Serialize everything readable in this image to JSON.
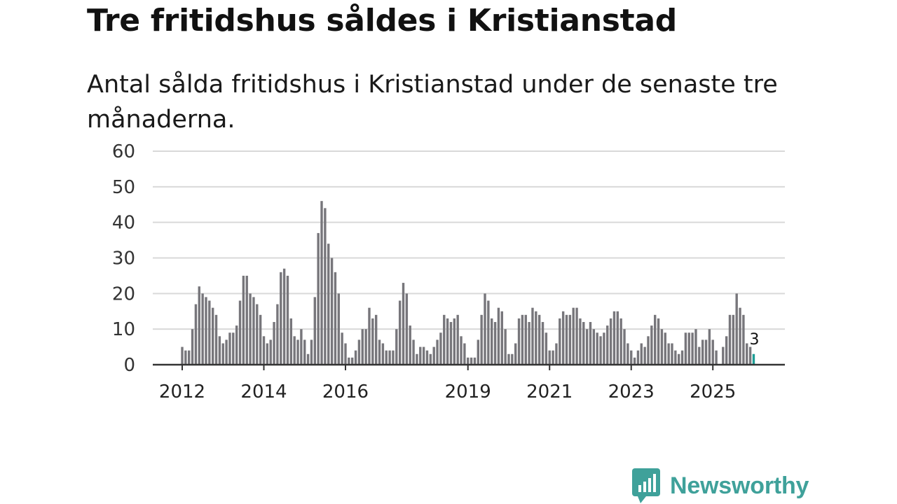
{
  "title": "Tre fritidshus såldes i Kristianstad",
  "subtitle": "Antal sålda fritidshus i Kristianstad under de senaste tre månaderna.",
  "brand": {
    "name": "Newsworthy",
    "color": "#3fa19a"
  },
  "colors": {
    "bar": "#77767b",
    "highlight": "#1e9e96",
    "grid": "#d9d9d9",
    "axis": "#333333"
  },
  "chart_data": {
    "type": "bar",
    "title": "Tre fritidshus såldes i Kristianstad",
    "subtitle": "Antal sålda fritidshus i Kristianstad under de senaste tre månaderna.",
    "xlabel": "",
    "ylabel": "",
    "ylim": [
      0,
      60
    ],
    "yticks": [
      0,
      10,
      20,
      30,
      40,
      50,
      60
    ],
    "grid": true,
    "start": "2012-01",
    "xticks": [
      {
        "label": "2012",
        "index": 0
      },
      {
        "label": "2014",
        "index": 24
      },
      {
        "label": "2016",
        "index": 48
      },
      {
        "label": "2019",
        "index": 84
      },
      {
        "label": "2021",
        "index": 108
      },
      {
        "label": "2023",
        "index": 132
      },
      {
        "label": "2025",
        "index": 156
      }
    ],
    "values": [
      5,
      4,
      4,
      10,
      17,
      22,
      20,
      19,
      18,
      16,
      14,
      8,
      6,
      7,
      9,
      9,
      11,
      18,
      25,
      25,
      20,
      19,
      17,
      14,
      8,
      6,
      7,
      12,
      17,
      26,
      27,
      25,
      13,
      8,
      7,
      10,
      7,
      3,
      7,
      19,
      37,
      46,
      44,
      34,
      30,
      26,
      20,
      9,
      6,
      2,
      2,
      4,
      7,
      10,
      10,
      16,
      13,
      14,
      7,
      6,
      4,
      4,
      4,
      10,
      18,
      23,
      20,
      11,
      7,
      3,
      5,
      5,
      4,
      3,
      5,
      7,
      9,
      14,
      13,
      12,
      13,
      14,
      8,
      6,
      2,
      2,
      2,
      7,
      14,
      20,
      18,
      13,
      12,
      16,
      15,
      10,
      3,
      3,
      6,
      13,
      14,
      14,
      12,
      16,
      15,
      14,
      12,
      9,
      4,
      4,
      6,
      13,
      15,
      14,
      14,
      16,
      16,
      13,
      12,
      10,
      12,
      10,
      9,
      8,
      9,
      11,
      13,
      15,
      15,
      13,
      10,
      6,
      4,
      2,
      4,
      6,
      5,
      8,
      11,
      14,
      13,
      10,
      9,
      6,
      6,
      4,
      3,
      4,
      9,
      9,
      9,
      10,
      5,
      7,
      7,
      10,
      7,
      4,
      0,
      5,
      8,
      14,
      14,
      20,
      16,
      14,
      6,
      5,
      3
    ],
    "highlight_last": true,
    "annotation": {
      "text": "3",
      "index": 168
    }
  }
}
